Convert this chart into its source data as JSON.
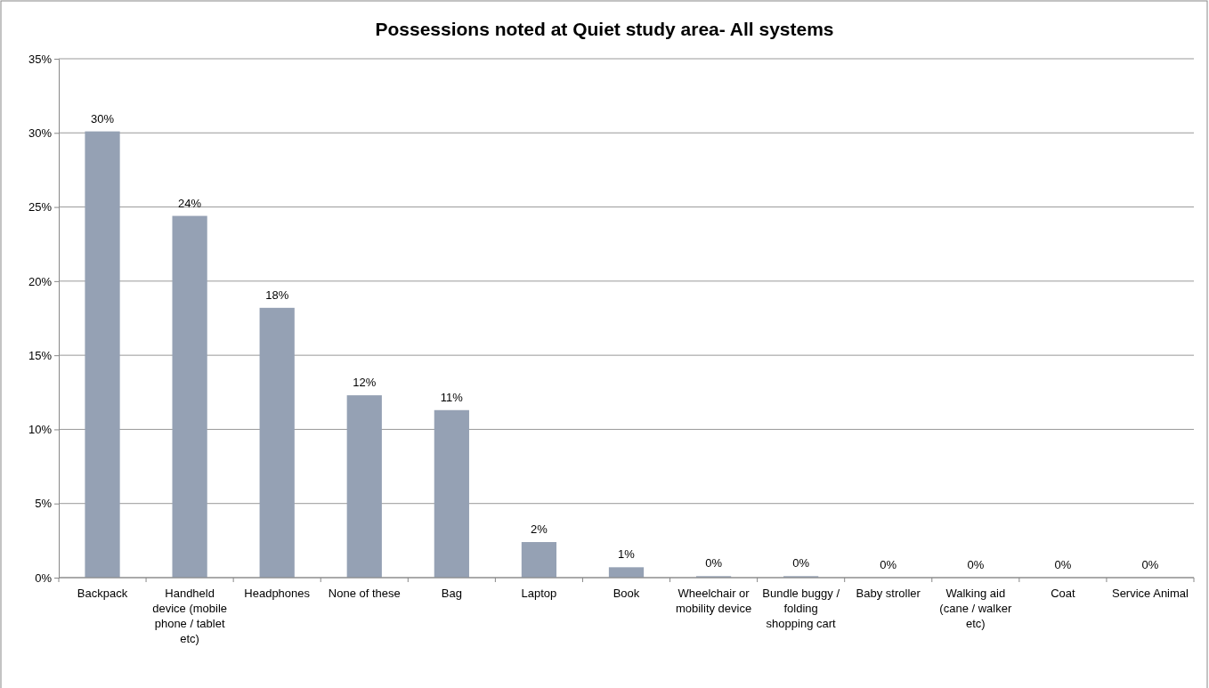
{
  "chart_data": {
    "type": "bar",
    "title": "Possessions noted at Quiet study area- All systems",
    "categories": [
      "Backpack",
      "Handheld device (mobile phone / tablet etc)",
      "Headphones",
      "None of these",
      "Bag",
      "Laptop",
      "Book",
      "Wheelchair or mobility device",
      "Bundle buggy / folding shopping cart",
      "Baby stroller",
      "Walking aid (cane / walker etc)",
      "Coat",
      "Service Animal"
    ],
    "values": [
      30.1,
      24.4,
      18.2,
      12.3,
      11.3,
      2.4,
      0.7,
      0.1,
      0.1,
      0,
      0,
      0,
      0
    ],
    "value_labels": [
      "30%",
      "24%",
      "18%",
      "12%",
      "11%",
      "2%",
      "1%",
      "0%",
      "0%",
      "0%",
      "0%",
      "0%",
      "0%"
    ],
    "color": "#95a1b4",
    "ylim": [
      0,
      35
    ],
    "yticks": [
      {
        "value": 0,
        "label": "0%"
      },
      {
        "value": 5,
        "label": "5%"
      },
      {
        "value": 10,
        "label": "10%"
      },
      {
        "value": 15,
        "label": "15%"
      },
      {
        "value": 20,
        "label": "20%"
      },
      {
        "value": 25,
        "label": "25%"
      },
      {
        "value": 30,
        "label": "30%"
      },
      {
        "value": 35,
        "label": "35%"
      }
    ],
    "grid": "y"
  }
}
